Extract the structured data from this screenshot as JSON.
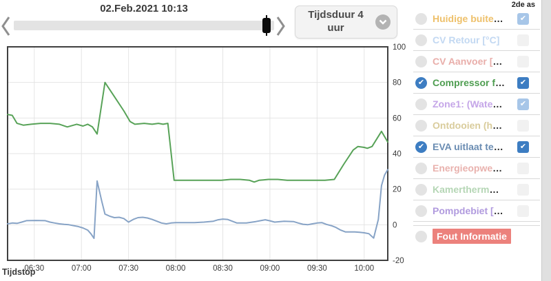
{
  "topbar": {
    "date_label": "02.Feb.2021 10:13",
    "slider": {
      "value_pct": 97
    },
    "duration_label": "Tijdsduur 4 uur",
    "icons": {
      "prev": "chevron-left",
      "next": "chevron-right",
      "duration": "chevron-down-circle"
    }
  },
  "legend": {
    "second_axis_header": "2de as",
    "check_glyph": "✔",
    "rows": [
      {
        "label": "Huidige buite",
        "suffix": "…",
        "color": "#eec06a",
        "radio": "unchecked",
        "checkbox": "checked-muted"
      },
      {
        "label": "CV Retour [°C]",
        "suffix": "",
        "color": "#c2d8f2",
        "radio": "unchecked",
        "checkbox": "unchecked"
      },
      {
        "label": "CV Aanvoer [",
        "suffix": "…",
        "color": "#e9aeaa",
        "radio": "unchecked",
        "checkbox": "unchecked"
      },
      {
        "label": "Compressor f",
        "suffix": "…",
        "color": "#4e9d50",
        "radio": "checked",
        "checkbox": "checked-strong"
      },
      {
        "label": "Zone1: (Wate",
        "suffix": "…",
        "color": "#c5a6e8",
        "radio": "unchecked",
        "checkbox": "checked-muted"
      },
      {
        "label": "Ontdooien (h",
        "suffix": "…",
        "color": "#d9cc9c",
        "radio": "unchecked",
        "checkbox": "unchecked"
      },
      {
        "label": "EVA uitlaat te",
        "suffix": "…",
        "color": "#6a8cb2",
        "radio": "checked",
        "checkbox": "checked-strong"
      },
      {
        "label": "Energieopwe",
        "suffix": "…",
        "color": "#e9b2ae",
        "radio": "unchecked",
        "checkbox": "unchecked"
      },
      {
        "label": "Kamertherm",
        "suffix": "…",
        "color": "#b5d6b5",
        "radio": "unchecked",
        "checkbox": "unchecked"
      },
      {
        "label": "Pompdebiet [",
        "suffix": "…",
        "color": "#b09ade",
        "radio": "unchecked",
        "checkbox": "unchecked"
      },
      {
        "label": "Fout Informatie",
        "suffix": "",
        "color": "#ffffff",
        "badge_bg": "#ec817c",
        "radio": "unchecked",
        "checkbox": "none"
      }
    ]
  },
  "chart_data": {
    "type": "line",
    "xlabel": "Tijdstop",
    "x_range": [
      "06:13",
      "10:15"
    ],
    "y_range": [
      -20,
      100
    ],
    "x_ticks": [
      "06:30",
      "07:00",
      "07:30",
      "08:00",
      "08:30",
      "09:00",
      "09:30",
      "10:00"
    ],
    "y_ticks": [
      100,
      80,
      60,
      40,
      20,
      0,
      -20
    ],
    "grid": true,
    "axis_side": "right",
    "series": [
      {
        "name": "Compressor f…",
        "color": "#57a257",
        "points": [
          [
            "06:13",
            62
          ],
          [
            "06:16",
            61.5
          ],
          [
            "06:19",
            57
          ],
          [
            "06:23",
            56
          ],
          [
            "06:28",
            56.5
          ],
          [
            "06:34",
            57
          ],
          [
            "06:40",
            57
          ],
          [
            "06:46",
            56.5
          ],
          [
            "06:51",
            55
          ],
          [
            "06:57",
            56.5
          ],
          [
            "07:01",
            55.5
          ],
          [
            "07:04",
            56.5
          ],
          [
            "07:07",
            55
          ],
          [
            "07:10",
            51
          ],
          [
            "07:15",
            80
          ],
          [
            "07:21",
            72
          ],
          [
            "07:27",
            64
          ],
          [
            "07:31",
            58
          ],
          [
            "07:34",
            56.5
          ],
          [
            "07:40",
            57
          ],
          [
            "07:45",
            56.5
          ],
          [
            "07:49",
            57
          ],
          [
            "07:52",
            56.5
          ],
          [
            "07:55",
            57
          ],
          [
            "07:59",
            25
          ],
          [
            "08:05",
            25
          ],
          [
            "08:11",
            25
          ],
          [
            "08:17",
            25
          ],
          [
            "08:23",
            25
          ],
          [
            "08:29",
            25
          ],
          [
            "08:35",
            25.5
          ],
          [
            "08:41",
            25.5
          ],
          [
            "08:47",
            25
          ],
          [
            "08:50",
            24
          ],
          [
            "08:53",
            25
          ],
          [
            "08:59",
            25.5
          ],
          [
            "09:05",
            25.5
          ],
          [
            "09:11",
            25
          ],
          [
            "09:17",
            25
          ],
          [
            "09:23",
            25
          ],
          [
            "09:29",
            25
          ],
          [
            "09:35",
            25
          ],
          [
            "09:41",
            25.5
          ],
          [
            "09:47",
            34
          ],
          [
            "09:53",
            42
          ],
          [
            "09:56",
            44
          ],
          [
            "10:00",
            43.5
          ],
          [
            "10:02",
            43
          ],
          [
            "10:05",
            44
          ],
          [
            "10:11",
            52.5
          ],
          [
            "10:15",
            46.5
          ]
        ]
      },
      {
        "name": "EVA uitlaat te…",
        "color": "#87a3c6",
        "points": [
          [
            "06:13",
            0.5
          ],
          [
            "06:16",
            1
          ],
          [
            "06:19",
            0.8
          ],
          [
            "06:22",
            1.5
          ],
          [
            "06:25",
            2.3
          ],
          [
            "06:31",
            2.4
          ],
          [
            "06:37",
            2.3
          ],
          [
            "06:40",
            1.5
          ],
          [
            "06:43",
            1
          ],
          [
            "06:46",
            0.5
          ],
          [
            "06:49",
            0.2
          ],
          [
            "06:52",
            0
          ],
          [
            "06:55",
            -0.5
          ],
          [
            "06:58",
            -1
          ],
          [
            "07:01",
            -1.8
          ],
          [
            "07:04",
            -3
          ],
          [
            "07:06",
            -5
          ],
          [
            "07:08",
            -7.6
          ],
          [
            "07:10",
            24.6
          ],
          [
            "07:13",
            13
          ],
          [
            "07:15",
            6
          ],
          [
            "07:18",
            4.8
          ],
          [
            "07:21",
            4
          ],
          [
            "07:24",
            4.2
          ],
          [
            "07:27",
            3.5
          ],
          [
            "07:30",
            1.5
          ],
          [
            "07:33",
            3
          ],
          [
            "07:36",
            4
          ],
          [
            "07:39",
            4.2
          ],
          [
            "07:42",
            3.8
          ],
          [
            "07:45",
            3
          ],
          [
            "07:48",
            2
          ],
          [
            "07:51",
            1
          ],
          [
            "07:54",
            0.5
          ],
          [
            "07:57",
            1
          ],
          [
            "08:00",
            1.2
          ],
          [
            "08:06",
            1.2
          ],
          [
            "08:12",
            1.2
          ],
          [
            "08:18",
            1.5
          ],
          [
            "08:24",
            2
          ],
          [
            "08:27",
            2.8
          ],
          [
            "08:30",
            3.2
          ],
          [
            "08:33",
            3
          ],
          [
            "08:36",
            2
          ],
          [
            "08:39",
            1
          ],
          [
            "08:45",
            1
          ],
          [
            "08:51",
            1.8
          ],
          [
            "08:57",
            2.8
          ],
          [
            "09:00",
            2.2
          ],
          [
            "09:03",
            1.5
          ],
          [
            "09:09",
            2
          ],
          [
            "09:15",
            1.8
          ],
          [
            "09:18",
            1
          ],
          [
            "09:21",
            0.3
          ],
          [
            "09:24",
            0
          ],
          [
            "09:27",
            0.5
          ],
          [
            "09:30",
            1
          ],
          [
            "09:33",
            1.2
          ],
          [
            "09:36",
            0.2
          ],
          [
            "09:39",
            -0.5
          ],
          [
            "09:42",
            -1.5
          ],
          [
            "09:45",
            -3
          ],
          [
            "09:48",
            -4
          ],
          [
            "09:54",
            -4
          ],
          [
            "09:57",
            -4.2
          ],
          [
            "10:00",
            -4.5
          ],
          [
            "10:03",
            -5
          ],
          [
            "10:06",
            -7.5
          ],
          [
            "10:09",
            3
          ],
          [
            "10:11",
            22
          ],
          [
            "10:13",
            28
          ],
          [
            "10:15",
            31
          ]
        ]
      }
    ]
  }
}
